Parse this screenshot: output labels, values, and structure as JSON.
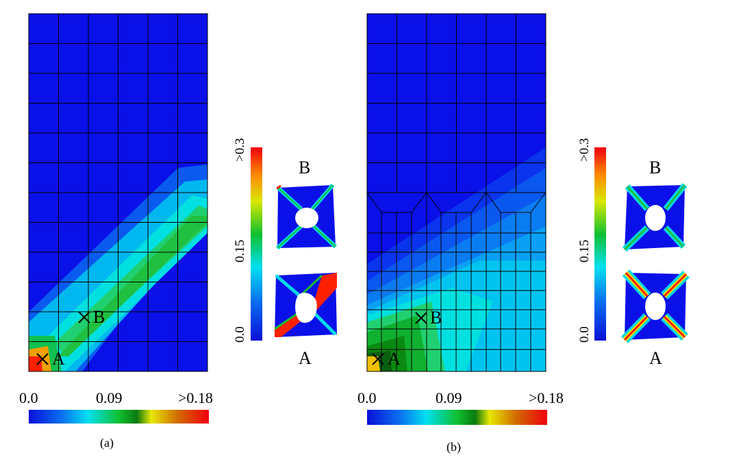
{
  "panels": [
    {
      "caption": "(a)",
      "colorbar": {
        "min": "0.0",
        "mid": "0.09",
        "max": ">0.18"
      },
      "inset_colorbar": {
        "min": "0.0",
        "mid": "0.15",
        "max": ">0.3"
      },
      "point_a": "A",
      "point_b": "B",
      "inset_top_label": "B",
      "inset_bottom_label": "A"
    },
    {
      "caption": "(b)",
      "colorbar": {
        "min": "0.0",
        "mid": "0.09",
        "max": ">0.18"
      },
      "inset_colorbar": {
        "min": "0.0",
        "mid": "0.15",
        "max": ">0.3"
      },
      "point_a": "A",
      "point_b": "B",
      "inset_top_label": "B",
      "inset_bottom_label": "A"
    }
  ],
  "colors": {
    "low": "#0a1de8",
    "mid": "#00e5e5",
    "green": "#16c216",
    "high": "#ff1a00"
  }
}
